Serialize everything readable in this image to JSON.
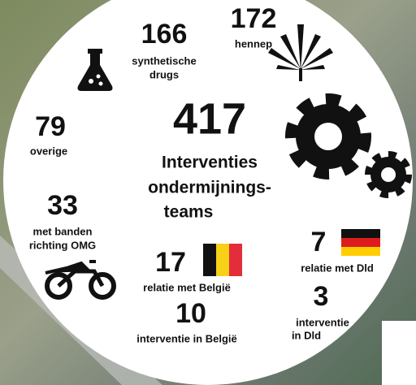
{
  "center": {
    "value": 417,
    "label": [
      "Interventies",
      "ondermijnings-",
      "teams"
    ]
  },
  "items": [
    {
      "value": 166,
      "label": [
        "synthetische",
        "drugs"
      ]
    },
    {
      "value": 172,
      "label": [
        "hennep"
      ]
    },
    {
      "value": 79,
      "label": [
        "overige"
      ]
    },
    {
      "value": 33,
      "label": [
        "met banden",
        "richting OMG"
      ]
    },
    {
      "value": 17,
      "label": [
        "relatie met België"
      ]
    },
    {
      "value": 10,
      "label": [
        "interventie in België"
      ]
    },
    {
      "value": 7,
      "label": [
        "relatie met Dld"
      ]
    },
    {
      "value": 3,
      "label": [
        "interventie",
        "in Dld"
      ]
    }
  ]
}
